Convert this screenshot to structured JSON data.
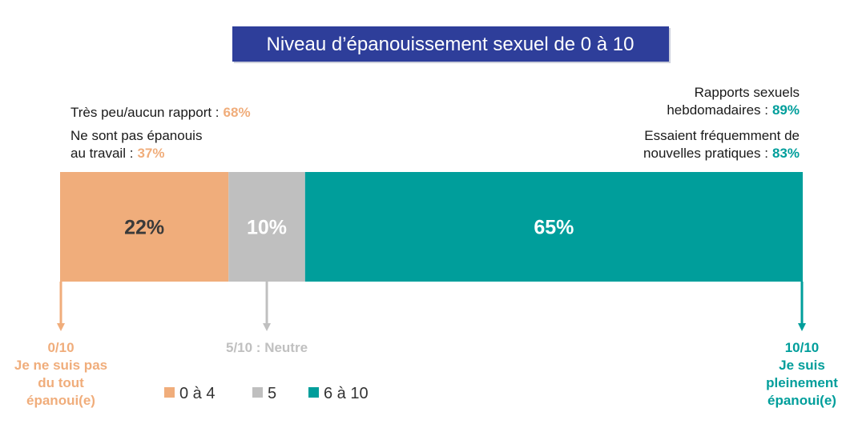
{
  "chart_data": {
    "type": "stacked-bar",
    "title": "Niveau d’épanouissement sexuel de 0 à 10",
    "series": [
      {
        "name": "0 à 4",
        "color": "#f0ad7b",
        "label_color": "#3a3a3a",
        "values": [
          22
        ],
        "value_labels": [
          "22%"
        ]
      },
      {
        "name": "5",
        "color": "#bfbfbf",
        "label_color": "#ffffff",
        "values": [
          10
        ],
        "value_labels": [
          "10%"
        ]
      },
      {
        "name": "6 à 10",
        "color": "#009e9b",
        "label_color": "#ffffff",
        "values": [
          65
        ],
        "value_labels": [
          "65%"
        ]
      }
    ],
    "annotations": [
      {
        "side": "left",
        "color": "#f0ad7b",
        "lines": [
          "Très peu/aucun rapport :"
        ],
        "highlight": "68%"
      },
      {
        "side": "left",
        "color": "#f0ad7b",
        "lines": [
          "Ne sont pas épanouis",
          "au travail :"
        ],
        "highlight": "37%"
      },
      {
        "side": "right",
        "color": "#009e9b",
        "lines": [
          "Rapports sexuels",
          "hebdomadaires :"
        ],
        "highlight": "89%"
      },
      {
        "side": "right",
        "color": "#009e9b",
        "lines": [
          "Essaient fréquemment de",
          "nouvelles pratiques :"
        ],
        "highlight": "83%"
      }
    ],
    "scale_markers": [
      {
        "color": "#f0ad7b",
        "lines": [
          "0/10",
          "Je ne suis pas",
          "du tout",
          "épanoui(e)"
        ]
      },
      {
        "color": "#c0c0c0",
        "lines": [
          "5/10 : Neutre"
        ]
      },
      {
        "color": "#009e9b",
        "lines": [
          "10/10",
          "Je suis",
          "pleinement",
          "épanoui(e)"
        ]
      }
    ],
    "legend": "bottom"
  }
}
